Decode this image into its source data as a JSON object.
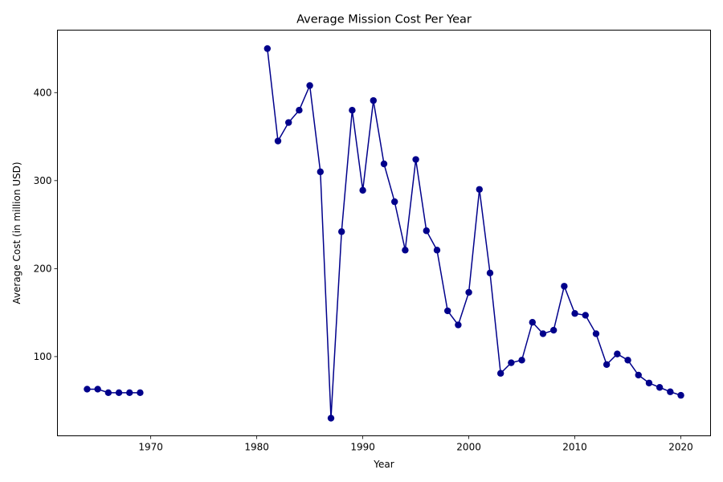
{
  "chart_data": {
    "type": "line",
    "title": "Average Mission Cost Per Year",
    "xlabel": "Year",
    "ylabel": "Average Cost (in million USD)",
    "xlim": [
      1961.2,
      2022.8
    ],
    "ylim": [
      10,
      471
    ],
    "xticks": [
      1970,
      1980,
      1990,
      2000,
      2010,
      2020
    ],
    "yticks": [
      100,
      200,
      300,
      400
    ],
    "grid": false,
    "colors": {
      "line": "#00008b",
      "marker": "#00008b"
    },
    "segments": [
      {
        "x": [
          1964,
          1965,
          1966,
          1967,
          1968,
          1969
        ],
        "y": [
          63,
          63,
          59,
          59,
          59,
          59
        ]
      },
      {
        "x": [
          1981,
          1982,
          1983,
          1984,
          1985,
          1986,
          1987,
          1988,
          1989,
          1990,
          1991,
          1992,
          1993,
          1994,
          1995,
          1996,
          1997,
          1998,
          1999,
          2000,
          2001,
          2002,
          2003,
          2004,
          2005,
          2006,
          2007,
          2008,
          2009,
          2010,
          2011,
          2012,
          2013,
          2014,
          2015,
          2016,
          2017,
          2018,
          2019,
          2020
        ],
        "y": [
          450,
          345,
          366,
          380,
          408,
          310,
          30,
          242,
          380,
          289,
          391,
          319,
          276,
          221,
          324,
          243,
          221,
          152,
          136,
          173,
          290,
          195,
          81,
          93,
          96,
          139,
          126,
          130,
          180,
          149,
          147,
          126,
          91,
          103,
          96,
          79,
          70,
          65,
          60,
          56
        ]
      }
    ]
  }
}
